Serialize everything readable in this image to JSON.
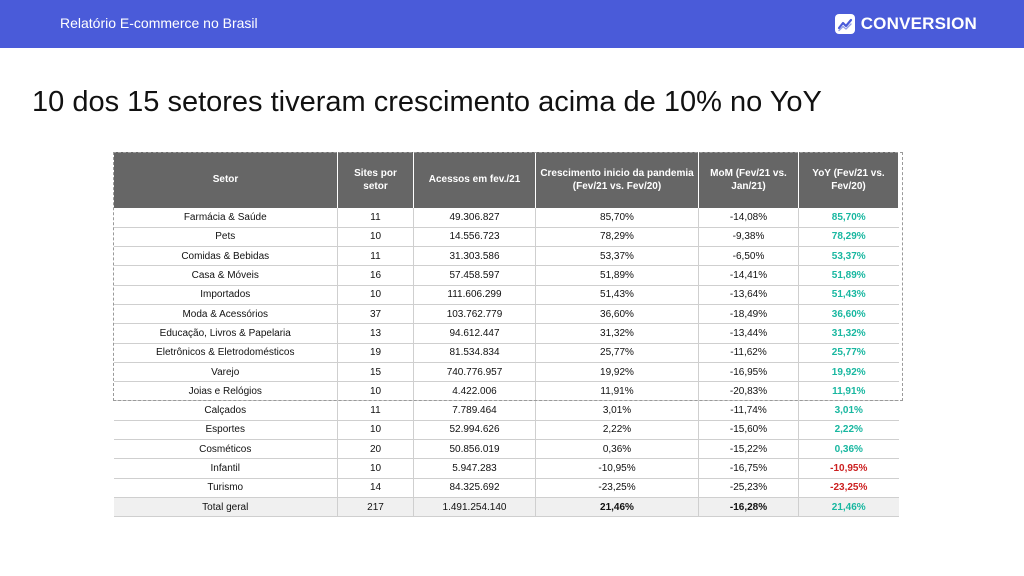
{
  "header": {
    "report_title": "Relatório E-commerce no Brasil",
    "brand": "CONVERSION",
    "logo_icon": "growth-chart-icon",
    "bar_color": "#4a5bd9"
  },
  "headline": "10 dos 15 setores tiveram crescimento acima de 10% no YoY",
  "table": {
    "headers": {
      "setor": "Setor",
      "sites": "Sites por setor",
      "acessos": "Acessos em fev./21",
      "crescimento": "Crescimento inicio da pandemia (Fev/21 vs. Fev/20)",
      "mom": "MoM (Fev/21 vs. Jan/21)",
      "yoy": "YoY (Fev/21 vs. Fev/20)"
    },
    "rows": [
      {
        "setor": "Farmácia & Saúde",
        "sites": "11",
        "acessos": "49.306.827",
        "crescimento": "85,70%",
        "mom": "-14,08%",
        "yoy": "85,70%"
      },
      {
        "setor": "Pets",
        "sites": "10",
        "acessos": "14.556.723",
        "crescimento": "78,29%",
        "mom": "-9,38%",
        "yoy": "78,29%"
      },
      {
        "setor": "Comidas & Bebidas",
        "sites": "11",
        "acessos": "31.303.586",
        "crescimento": "53,37%",
        "mom": "-6,50%",
        "yoy": "53,37%"
      },
      {
        "setor": "Casa & Móveis",
        "sites": "16",
        "acessos": "57.458.597",
        "crescimento": "51,89%",
        "mom": "-14,41%",
        "yoy": "51,89%"
      },
      {
        "setor": "Importados",
        "sites": "10",
        "acessos": "111.606.299",
        "crescimento": "51,43%",
        "mom": "-13,64%",
        "yoy": "51,43%"
      },
      {
        "setor": "Moda & Acessórios",
        "sites": "37",
        "acessos": "103.762.779",
        "crescimento": "36,60%",
        "mom": "-18,49%",
        "yoy": "36,60%"
      },
      {
        "setor": "Educação, Livros & Papelaria",
        "sites": "13",
        "acessos": "94.612.447",
        "crescimento": "31,32%",
        "mom": "-13,44%",
        "yoy": "31,32%"
      },
      {
        "setor": "Eletrônicos & Eletrodomésticos",
        "sites": "19",
        "acessos": "81.534.834",
        "crescimento": "25,77%",
        "mom": "-11,62%",
        "yoy": "25,77%"
      },
      {
        "setor": "Varejo",
        "sites": "15",
        "acessos": "740.776.957",
        "crescimento": "19,92%",
        "mom": "-16,95%",
        "yoy": "19,92%"
      },
      {
        "setor": "Joias e Relógios",
        "sites": "10",
        "acessos": "4.422.006",
        "crescimento": "11,91%",
        "mom": "-20,83%",
        "yoy": "11,91%"
      },
      {
        "setor": "Calçados",
        "sites": "11",
        "acessos": "7.789.464",
        "crescimento": "3,01%",
        "mom": "-11,74%",
        "yoy": "3,01%"
      },
      {
        "setor": "Esportes",
        "sites": "10",
        "acessos": "52.994.626",
        "crescimento": "2,22%",
        "mom": "-15,60%",
        "yoy": "2,22%"
      },
      {
        "setor": "Cosméticos",
        "sites": "20",
        "acessos": "50.856.019",
        "crescimento": "0,36%",
        "mom": "-15,22%",
        "yoy": "0,36%"
      },
      {
        "setor": "Infantil",
        "sites": "10",
        "acessos": "5.947.283",
        "crescimento": "-10,95%",
        "mom": "-16,75%",
        "yoy": "-10,95%"
      },
      {
        "setor": "Turismo",
        "sites": "14",
        "acessos": "84.325.692",
        "crescimento": "-23,25%",
        "mom": "-25,23%",
        "yoy": "-23,25%"
      }
    ],
    "total": {
      "setor": "Total geral",
      "sites": "217",
      "acessos": "1.491.254.140",
      "crescimento": "21,46%",
      "mom": "-16,28%",
      "yoy": "21,46%"
    },
    "colors": {
      "header_bg": "#666666",
      "positive": "#18b7a0",
      "negative": "#cc1f1f",
      "total_bg": "#f0f0f0"
    }
  }
}
